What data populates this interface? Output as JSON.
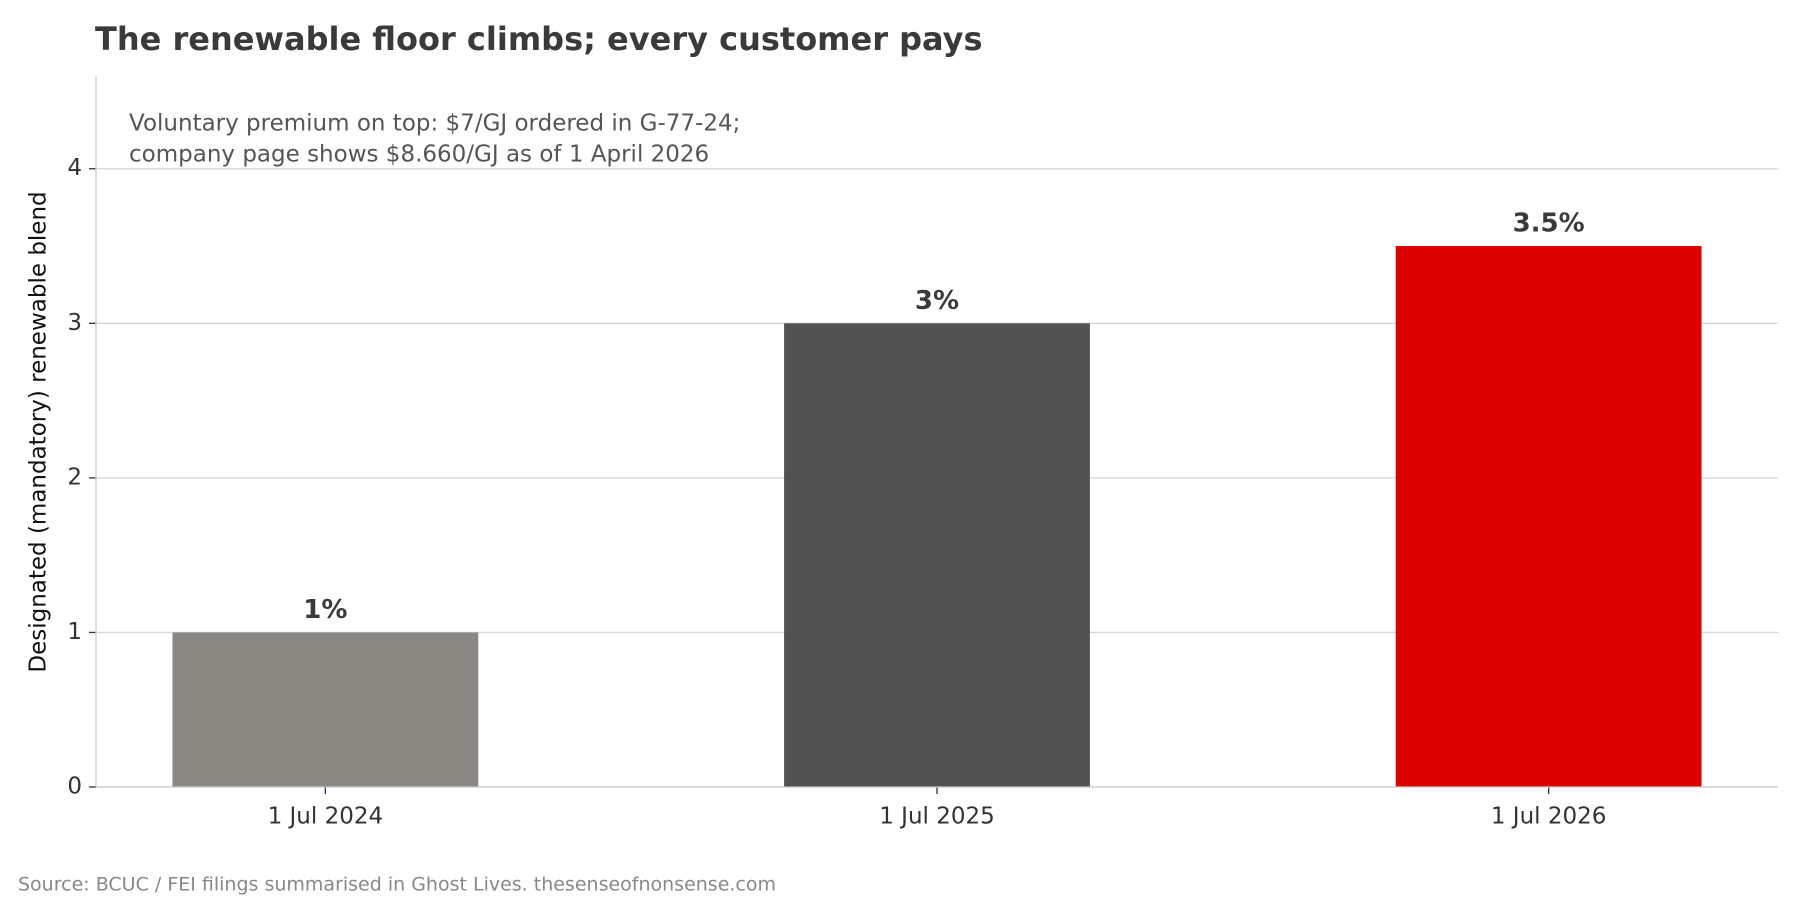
{
  "chart_data": {
    "type": "bar",
    "title": "The renewable floor climbs; every customer pays",
    "annotation": [
      "Voluntary premium on top: $7/GJ ordered in G-77-24;",
      "company page shows $8.660/GJ as of 1 April 2026"
    ],
    "ylabel": "Designated (mandatory) renewable blend",
    "source": "Source: BCUC / FEI filings summarised in Ghost Lives. thesenseofnonsense.com",
    "categories": [
      "1 Jul 2024",
      "1 Jul 2025",
      "1 Jul 2026"
    ],
    "values": [
      1,
      3,
      3.5
    ],
    "value_labels": [
      "1%",
      "3%",
      "3.5%"
    ],
    "colors": [
      "#8a8782",
      "#525252",
      "#dd0000"
    ],
    "ylim": [
      0,
      4.6
    ],
    "yticks": [
      0,
      1,
      2,
      3,
      4
    ],
    "grid": true
  }
}
